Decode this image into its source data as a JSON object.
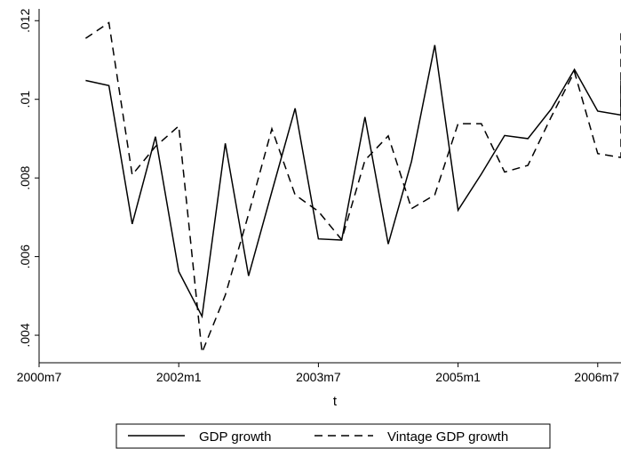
{
  "chart_data": {
    "type": "line",
    "title": "",
    "xlabel": "t",
    "ylabel": "",
    "x_ticks": [
      "2000m7",
      "2002m1",
      "2003m7",
      "2005m1",
      "2006m7"
    ],
    "y_ticks": [
      ".004",
      ".006",
      ".008",
      ".01",
      ".012"
    ],
    "y_tick_values": [
      0.004,
      0.006,
      0.008,
      0.01,
      0.012
    ],
    "xlim": [
      "2000m7",
      "2006m10"
    ],
    "ylim": [
      0.0033,
      0.0123
    ],
    "grid": false,
    "legend_position": "bottom",
    "x": [
      "2001m1",
      "2001m4",
      "2001m7",
      "2001m10",
      "2002m1",
      "2002m4",
      "2002m7",
      "2002m10",
      "2003m1",
      "2003m4",
      "2003m7",
      "2003m10",
      "2004m1",
      "2004m4",
      "2004m7",
      "2004m10",
      "2005m1",
      "2005m4",
      "2005m7",
      "2005m10",
      "2006m1",
      "2006m4",
      "2006m7",
      "2006m10"
    ],
    "series": [
      {
        "name": "GDP growth",
        "style": "solid",
        "color": "#000000",
        "values": [
          0.01048,
          0.01035,
          0.00683,
          0.00905,
          0.00562,
          0.00448,
          0.00888,
          0.00551,
          0.00765,
          0.00977,
          0.00645,
          0.00642,
          0.00955,
          0.00632,
          0.00842,
          0.01138,
          0.00718,
          0.0081,
          0.00908,
          0.009,
          0.00975,
          0.01076,
          0.0097,
          0.0096
        ]
      },
      {
        "name": "Vintage GDP growth",
        "style": "dashed",
        "color": "#000000",
        "values": [
          0.01155,
          0.01195,
          0.00808,
          0.0088,
          0.00932,
          0.00356,
          0.00502,
          0.00708,
          0.00925,
          0.00757,
          0.00715,
          0.00643,
          0.00845,
          0.00907,
          0.00722,
          0.00757,
          0.00938,
          0.00938,
          0.00815,
          0.00832,
          0.00955,
          0.0107,
          0.00862,
          0.00852
        ]
      }
    ],
    "series_end_values": [
      0.01048,
      0.01168
    ]
  }
}
